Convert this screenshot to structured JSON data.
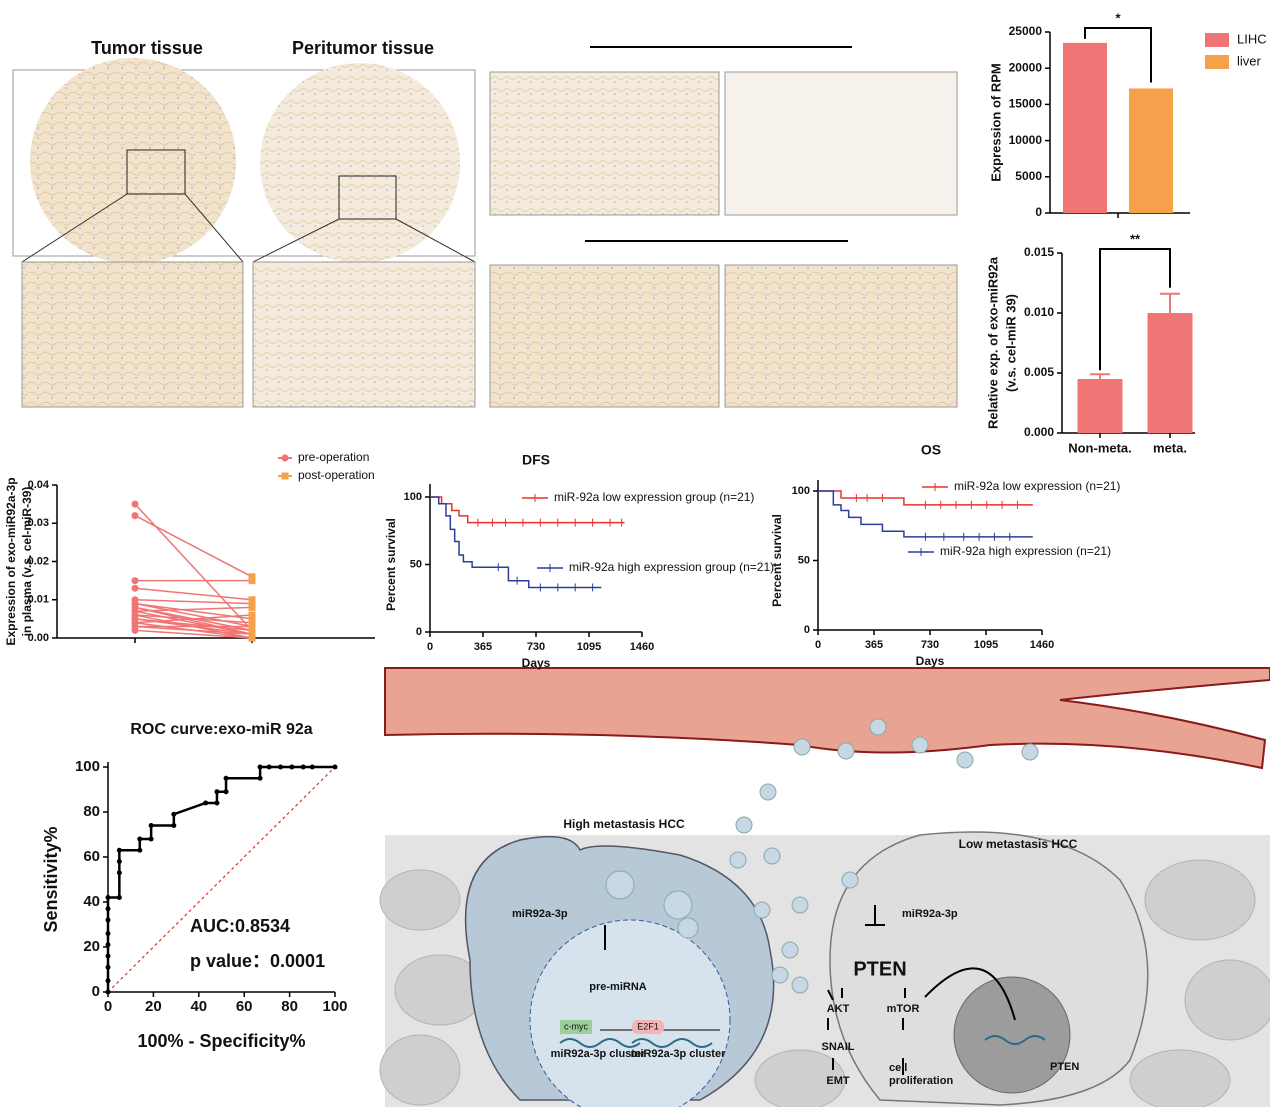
{
  "chart_data": [
    {
      "type": "bar",
      "categories": [
        "LIHC",
        "liver"
      ],
      "values": [
        23500,
        17200
      ],
      "colors": [
        "#f07575",
        "#f5a04a"
      ],
      "legend": "right",
      "y_label": [
        "Expression of RPM"
      ],
      "ylim": [
        0,
        25000
      ],
      "yticks": [
        0,
        5000,
        10000,
        15000,
        20000,
        25000
      ],
      "annotation": "*"
    },
    {
      "type": "bar",
      "categories": [
        "Non-meta.",
        "meta."
      ],
      "values": [
        0.0045,
        0.01
      ],
      "errors": [
        0.0004,
        0.0016
      ],
      "color": "#f07575",
      "y_label": [
        "Relative exp. of exo-miR92a",
        "(v.s. cel-miR 39)"
      ],
      "ylim": [
        0,
        0.015
      ],
      "yticks": [
        {
          "value": 0,
          "label": "0.000"
        },
        0.005,
        {
          "value": 0.01,
          "label": "0.010"
        },
        0.015
      ],
      "annotation": "**"
    },
    {
      "type": "paired",
      "series": [
        {
          "name": "pre-operation",
          "color": "#f07575",
          "values": [
            0.035,
            0.032,
            0.015,
            0.013,
            0.01,
            0.009,
            0.009,
            0.008,
            0.008,
            0.007,
            0.007,
            0.006,
            0.006,
            0.005,
            0.005,
            0.004,
            0.004,
            0.003,
            0.003,
            0.002
          ]
        },
        {
          "name": "post-operation",
          "color": "#f5a04a",
          "values": [
            0.002,
            0.016,
            0.015,
            0.01,
            0.009,
            0.005,
            0.003,
            0.002,
            0.001,
            0.008,
            0.001,
            0.004,
            0.0,
            0.002,
            0.001,
            0.006,
            0.0,
            0.003,
            0.001,
            0.0
          ]
        }
      ],
      "y_label": [
        "Expression of exo-miR92a-3p",
        "in plasma (v.s. cel-miR-39)"
      ],
      "ylim": [
        0,
        0.04
      ],
      "yticks": [
        {
          "value": 0,
          "label": "0.00"
        },
        0.01,
        0.02,
        0.03,
        0.04
      ]
    },
    {
      "type": "step",
      "title": "DFS",
      "x_label": "Days",
      "y_label": [
        "Percent survival"
      ],
      "xlim": [
        0,
        1460
      ],
      "xticks": [
        0,
        365,
        730,
        1095,
        1460
      ],
      "ylim": [
        0,
        100
      ],
      "yticks": [
        0,
        50,
        100
      ],
      "series": [
        {
          "name": "miR-92a low expression group (n=21)",
          "color": "#e8322e",
          "x": [
            0,
            80,
            150,
            200,
            260,
            1340
          ],
          "values": [
            100,
            95,
            90,
            86,
            81,
            81
          ],
          "censored": [
            330,
            430,
            520,
            640,
            760,
            880,
            1000,
            1120,
            1240,
            1320
          ]
        },
        {
          "name": "miR-92a high expression group (n=21)",
          "color": "#2b3f9a",
          "x": [
            0,
            60,
            110,
            140,
            170,
            200,
            230,
            290,
            540,
            680,
            1180
          ],
          "values": [
            100,
            95,
            86,
            76,
            67,
            57,
            52,
            48,
            38,
            33,
            33
          ],
          "censored": [
            470,
            600,
            760,
            880,
            1000,
            1120
          ]
        }
      ]
    },
    {
      "type": "step",
      "title": "OS",
      "x_label": "Days",
      "y_label": [
        "Percent survival"
      ],
      "xlim": [
        0,
        1460
      ],
      "xticks": [
        0,
        365,
        730,
        1095,
        1460
      ],
      "ylim": [
        0,
        100
      ],
      "yticks": [
        0,
        50,
        100
      ],
      "series": [
        {
          "name": "miR-92a low expression (n=21)",
          "color": "#e8322e",
          "x": [
            0,
            150,
            560,
            1400
          ],
          "values": [
            100,
            95,
            90,
            90
          ],
          "censored": [
            250,
            320,
            420,
            700,
            800,
            900,
            1000,
            1100,
            1200,
            1300
          ]
        },
        {
          "name": "miR-92a high expression (n=21)",
          "color": "#2b3f9a",
          "x": [
            0,
            100,
            150,
            200,
            280,
            420,
            560,
            1400
          ],
          "values": [
            100,
            90,
            86,
            81,
            76,
            71,
            67,
            67
          ],
          "censored": [
            700,
            820,
            950,
            1050,
            1150,
            1250
          ]
        }
      ]
    },
    {
      "type": "roc",
      "title": "ROC curve:exo-miR 92a",
      "x_label": "100% - Specificity%",
      "y_label": [
        "Sensitivity%"
      ],
      "xlim": [
        0,
        100
      ],
      "ylim": [
        0,
        100
      ],
      "xticks": [
        0,
        20,
        40,
        60,
        80,
        100
      ],
      "yticks": [
        0,
        20,
        40,
        60,
        80,
        100
      ],
      "x": [
        0,
        0,
        0,
        0,
        0,
        0,
        0,
        0,
        0,
        5,
        5,
        5,
        5,
        14,
        14,
        19,
        19,
        29,
        29,
        43,
        48,
        48,
        52,
        52,
        67,
        67,
        71,
        76,
        81,
        86,
        90,
        100
      ],
      "values": [
        0,
        5,
        11,
        16,
        21,
        26,
        32,
        37,
        42,
        42,
        53,
        58,
        63,
        63,
        68,
        68,
        74,
        74,
        79,
        84,
        84,
        89,
        89,
        95,
        95,
        100,
        100,
        100,
        100,
        100,
        100,
        100
      ],
      "color": "#000000",
      "annotations": [
        "AUC:0.8534",
        "p value：0.0001"
      ]
    }
  ],
  "histology": {
    "tumor": "Tumor tissue",
    "peritumor": "Peritumor tissue"
  },
  "diagram": {
    "high": "High metastasis HCC",
    "low": "Low metastasis HCC",
    "mir_left": "miR92a-3p",
    "mir_right": "miR92a-3p",
    "pre": "pre-miRNA",
    "cmyc": "c-myc",
    "e2f1": "E2F1",
    "cluster1": "miR92a-3p cluster",
    "cluster2": "miR92a-3p cluster",
    "pten": "PTEN",
    "pten_gene": "PTEN",
    "akt": "AKT",
    "mtor": "mTOR",
    "snail": "SNAIL",
    "emt": "EMT",
    "prolif": [
      "cell",
      "proliferation"
    ]
  }
}
